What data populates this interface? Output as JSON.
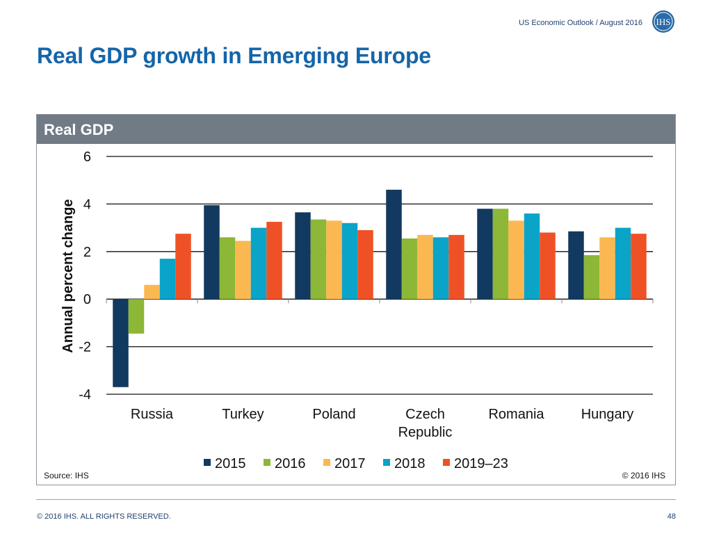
{
  "header": {
    "subtitle": "US Economic Outlook / August 2016",
    "logo_text": "IHS"
  },
  "slide": {
    "title": "Real GDP growth in Emerging Europe"
  },
  "panel": {
    "title": "Real GDP",
    "source": "Source: IHS",
    "copyright": "© 2016 IHS"
  },
  "footer": {
    "rights": "© 2016 IHS. ALL RIGHTS RESERVED.",
    "page": "48"
  },
  "colors": {
    "title_blue": "#1565a8",
    "panel_header": "#717b86",
    "series": [
      "#12395f",
      "#8cb737",
      "#fbb851",
      "#0aa4c8",
      "#ef5127"
    ]
  },
  "chart_data": {
    "type": "bar",
    "categories": [
      [
        "Russia"
      ],
      [
        "Turkey"
      ],
      [
        "Poland"
      ],
      [
        "Czech",
        "Republic"
      ],
      [
        "Romania"
      ],
      [
        "Hungary"
      ]
    ],
    "series": [
      {
        "name": "2015",
        "values": [
          -3.7,
          3.95,
          3.65,
          4.6,
          3.8,
          2.85
        ]
      },
      {
        "name": "2016",
        "values": [
          -1.45,
          2.6,
          3.35,
          2.55,
          3.8,
          1.85
        ]
      },
      {
        "name": "2017",
        "values": [
          0.6,
          2.45,
          3.3,
          2.7,
          3.3,
          2.6
        ]
      },
      {
        "name": "2018",
        "values": [
          1.7,
          3.0,
          3.2,
          2.6,
          3.6,
          3.0
        ]
      },
      {
        "name": "2019–23",
        "values": [
          2.75,
          3.25,
          2.9,
          2.7,
          2.8,
          2.75
        ]
      }
    ],
    "ylabel": "Annual percent change",
    "ylim": [
      -4,
      6
    ],
    "yticks": [
      6,
      4,
      2,
      0,
      -2,
      -4
    ],
    "grid": true,
    "legend": "bottom"
  }
}
